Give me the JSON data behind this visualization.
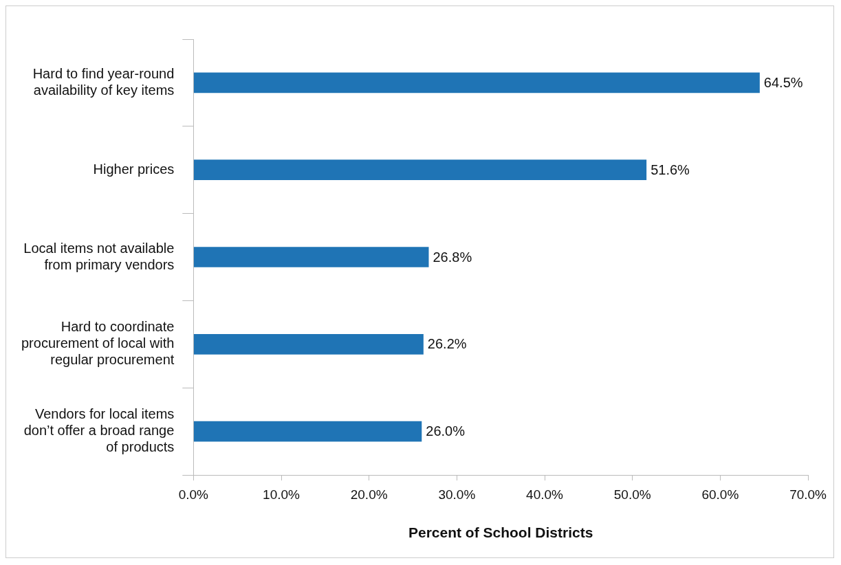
{
  "chart_data": {
    "type": "bar",
    "orientation": "horizontal",
    "xlabel": "Percent of School Districts",
    "categories": [
      "Hard to find year-round availability of key items",
      "Higher prices",
      "Local items not available from primary vendors",
      "Hard to coordinate procurement of local with regular procurement",
      "Vendors for local items don’t offer a broad range of products"
    ],
    "values": [
      64.5,
      51.6,
      26.8,
      26.2,
      26.0
    ],
    "value_labels": [
      "64.5%",
      "51.6%",
      "26.8%",
      "26.2%",
      "26.0%"
    ],
    "color": "#1f74b5",
    "xlim": [
      0,
      70
    ],
    "xticks": [
      {
        "value": 0,
        "label": "0.0%"
      },
      {
        "value": 10,
        "label": "10.0%"
      },
      {
        "value": 20,
        "label": "20.0%"
      },
      {
        "value": 30,
        "label": "30.0%"
      },
      {
        "value": 40,
        "label": "40.0%"
      },
      {
        "value": 50,
        "label": "50.0%"
      },
      {
        "value": 60,
        "label": "60.0%"
      },
      {
        "value": 70,
        "label": "70.0%"
      }
    ],
    "grid": false,
    "legend": false
  }
}
